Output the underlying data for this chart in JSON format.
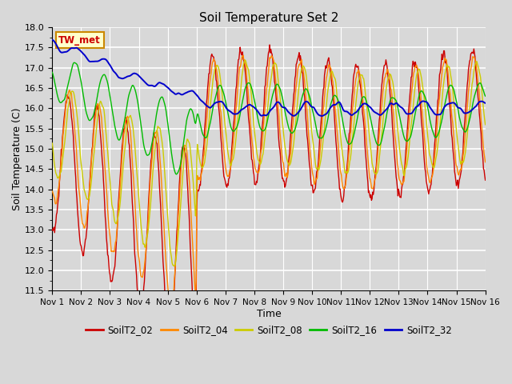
{
  "title": "Soil Temperature Set 2",
  "xlabel": "Time",
  "ylabel": "Soil Temperature (C)",
  "ylim": [
    11.5,
    18.0
  ],
  "yticks": [
    11.5,
    12.0,
    12.5,
    13.0,
    13.5,
    14.0,
    14.5,
    15.0,
    15.5,
    16.0,
    16.5,
    17.0,
    17.5,
    18.0
  ],
  "series_colors": {
    "SoilT2_02": "#cc0000",
    "SoilT2_04": "#ff8800",
    "SoilT2_08": "#cccc00",
    "SoilT2_16": "#00bb00",
    "SoilT2_32": "#0000cc"
  },
  "xtick_labels": [
    "Nov 1",
    "Nov 2",
    "Nov 3",
    "Nov 4",
    "Nov 5",
    "Nov 6",
    "Nov 7",
    "Nov 8",
    "Nov 9",
    "Nov 10",
    "Nov 11",
    "Nov 12",
    "Nov 13",
    "Nov 14",
    "Nov 15",
    "Nov 16"
  ],
  "n_days": 15,
  "bg_color": "#d8d8d8",
  "grid_color": "#ffffff",
  "annotation_text": "TW_met",
  "annotation_bg": "#ffffcc",
  "annotation_border": "#cc8800",
  "annotation_text_color": "#cc0000"
}
